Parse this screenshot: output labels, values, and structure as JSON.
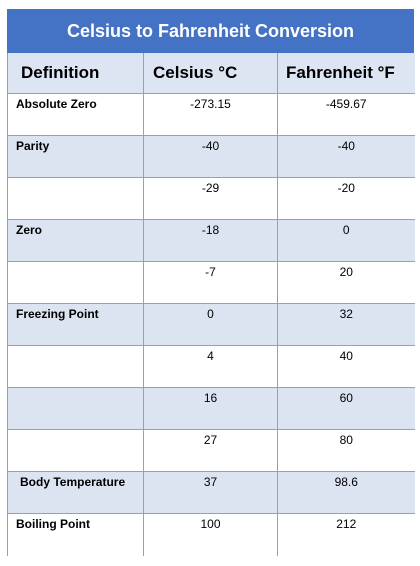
{
  "title": "Celsius to Fahrenheit Conversion",
  "headers": {
    "definition": "Definition",
    "celsius": "Celsius °C",
    "fahrenheit": "Fahrenheit °F"
  },
  "rows": [
    {
      "definition": "Absolute Zero",
      "celsius": "-273.15",
      "fahrenheit": "-459.67"
    },
    {
      "definition": "Parity",
      "celsius": "-40",
      "fahrenheit": "-40"
    },
    {
      "definition": "",
      "celsius": "-29",
      "fahrenheit": "-20"
    },
    {
      "definition": "Zero",
      "celsius": "-18",
      "fahrenheit": "0"
    },
    {
      "definition": "",
      "celsius": "-7",
      "fahrenheit": "20"
    },
    {
      "definition": "Freezing Point",
      "celsius": "0",
      "fahrenheit": "32"
    },
    {
      "definition": "",
      "celsius": "4",
      "fahrenheit": "40"
    },
    {
      "definition": "",
      "celsius": "16",
      "fahrenheit": "60"
    },
    {
      "definition": "",
      "celsius": "27",
      "fahrenheit": "80"
    },
    {
      "definition": "Body Temperature",
      "celsius": "37",
      "fahrenheit": "98.6"
    },
    {
      "definition": "Boiling Point",
      "celsius": "100",
      "fahrenheit": "212"
    }
  ],
  "colors": {
    "title_bg": "#4472c4",
    "title_text": "#ffffff",
    "shaded_row": "#dce4f2",
    "border": "#7fa7d0"
  }
}
